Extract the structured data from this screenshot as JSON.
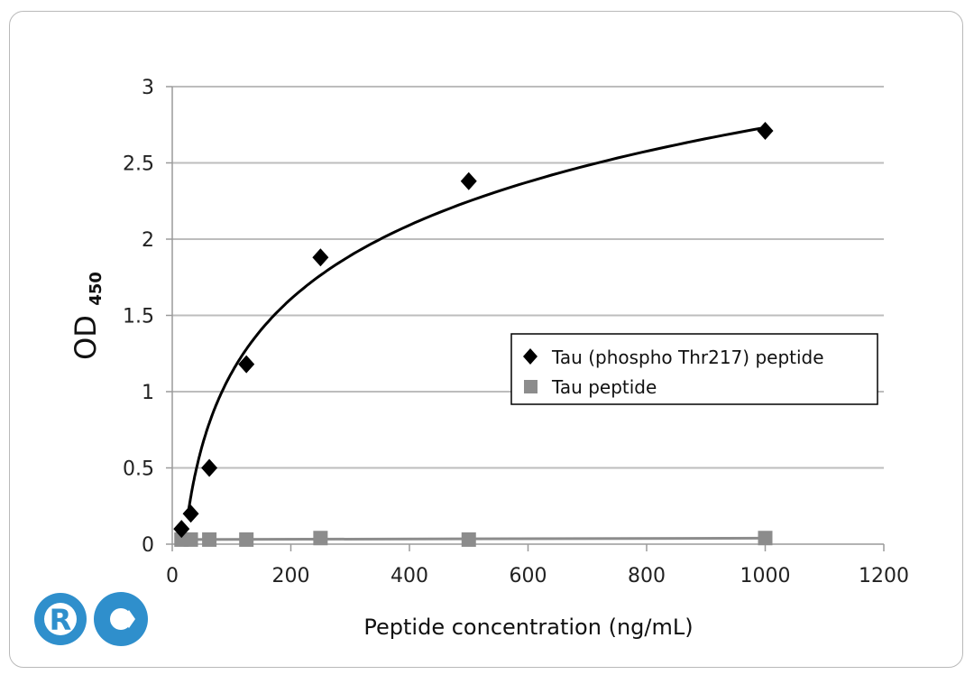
{
  "chart_data": {
    "type": "scatter",
    "xlabel": "Peptide concentration (ng/mL)",
    "ylabel": "OD",
    "ylabel_subscript": "450",
    "xlim": [
      0,
      1200
    ],
    "ylim": [
      0,
      3
    ],
    "x_ticks": [
      "0",
      "200",
      "400",
      "600",
      "800",
      "1000",
      "1200"
    ],
    "y_ticks": [
      "0",
      "0.5",
      "1",
      "1.5",
      "2",
      "2.5",
      "3"
    ],
    "grid": "horizontal",
    "legend_position": "center-right",
    "series": [
      {
        "name": "Tau (phospho Thr217) peptide",
        "marker": "diamond",
        "color": "#000000",
        "x": [
          15.6,
          31.25,
          62.5,
          125,
          250,
          500,
          1000
        ],
        "y": [
          0.1,
          0.2,
          0.5,
          1.18,
          1.88,
          2.38,
          2.71
        ],
        "trendline": "logarithmic"
      },
      {
        "name": "Tau peptide",
        "marker": "square",
        "color": "#8c8c8c",
        "x": [
          15.6,
          31.25,
          62.5,
          125,
          250,
          500,
          1000
        ],
        "y": [
          0.03,
          0.03,
          0.03,
          0.03,
          0.04,
          0.03,
          0.04
        ],
        "trendline": "linear"
      }
    ]
  },
  "logo": {
    "text": "R",
    "color": "#2f8fcc"
  }
}
